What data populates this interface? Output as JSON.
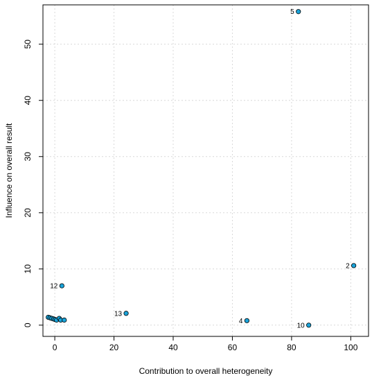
{
  "chart_data": {
    "type": "scatter",
    "title": "",
    "xlabel": "Contribution to overall heterogeneity",
    "ylabel": "Influence on overall result",
    "xlim": [
      -4,
      106
    ],
    "ylim": [
      -2,
      57
    ],
    "x_ticks": [
      0,
      20,
      40,
      60,
      80,
      100
    ],
    "y_ticks": [
      0,
      10,
      20,
      30,
      40,
      50
    ],
    "grid": true,
    "legend": "none",
    "point_color": "#1aa3d9",
    "points": [
      {
        "x": 82.3,
        "y": 55.8,
        "label": "5",
        "label_side": "left"
      },
      {
        "x": 101.0,
        "y": 10.6,
        "label": "2",
        "label_side": "left"
      },
      {
        "x": 2.4,
        "y": 7.0,
        "label": "12",
        "label_side": "left"
      },
      {
        "x": 24.1,
        "y": 2.1,
        "label": "13",
        "label_side": "left"
      },
      {
        "x": 64.9,
        "y": 0.8,
        "label": "4",
        "label_side": "left"
      },
      {
        "x": 85.8,
        "y": 0.0,
        "label": "10",
        "label_side": "left"
      },
      {
        "x": -2.2,
        "y": 1.4,
        "label": "",
        "label_side": "left"
      },
      {
        "x": -1.6,
        "y": 1.3,
        "label": "",
        "label_side": "left"
      },
      {
        "x": -1.0,
        "y": 1.2,
        "label": "",
        "label_side": "left"
      },
      {
        "x": -0.4,
        "y": 1.1,
        "label": "",
        "label_side": "left"
      },
      {
        "x": 0.1,
        "y": 1.0,
        "label": "",
        "label_side": "left"
      },
      {
        "x": 0.6,
        "y": 0.9,
        "label": "",
        "label_side": "left"
      },
      {
        "x": 1.5,
        "y": 1.2,
        "label": "",
        "label_side": "left"
      },
      {
        "x": 2.0,
        "y": 0.9,
        "label": "",
        "label_side": "left"
      },
      {
        "x": 3.2,
        "y": 0.9,
        "label": "",
        "label_side": "left"
      }
    ]
  }
}
